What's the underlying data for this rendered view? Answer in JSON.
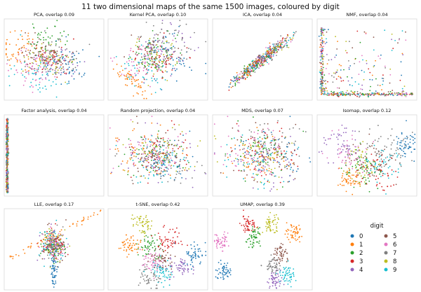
{
  "title": "11 two dimensional maps of the same 1500 images, coloured by digit",
  "colors": {
    "0": "#1f77b4",
    "1": "#ff7f0e",
    "2": "#2ca02c",
    "3": "#d62728",
    "4": "#9467bd",
    "5": "#8c564b",
    "6": "#e377c2",
    "7": "#7f7f7f",
    "8": "#bcbd22",
    "9": "#17becf"
  },
  "legend": {
    "title": "digit",
    "entries": [
      "0",
      "1",
      "2",
      "3",
      "4",
      "5",
      "6",
      "7",
      "8",
      "9"
    ]
  },
  "chart_data": [
    {
      "type": "scatter",
      "title": "PCA, overlap 0.09",
      "method": "PCA",
      "overlap": 0.09,
      "n_points": 1500,
      "series_by": "digit",
      "grid": false
    },
    {
      "type": "scatter",
      "title": "Kernel PCA, overlap 0.10",
      "method": "Kernel PCA",
      "overlap": 0.1,
      "n_points": 1500,
      "series_by": "digit",
      "grid": false
    },
    {
      "type": "scatter",
      "title": "ICA, overlap 0.04",
      "method": "ICA",
      "overlap": 0.04,
      "n_points": 1500,
      "series_by": "digit",
      "grid": false
    },
    {
      "type": "scatter",
      "title": "NMF, overlap 0.04",
      "method": "NMF",
      "overlap": 0.04,
      "n_points": 1500,
      "series_by": "digit",
      "grid": false
    },
    {
      "type": "scatter",
      "title": "Factor analysis, overlap 0.04",
      "method": "Factor analysis",
      "overlap": 0.04,
      "n_points": 1500,
      "series_by": "digit",
      "grid": false
    },
    {
      "type": "scatter",
      "title": "Random projection, overlap 0.04",
      "method": "Random projection",
      "overlap": 0.04,
      "n_points": 1500,
      "series_by": "digit",
      "grid": false
    },
    {
      "type": "scatter",
      "title": "MDS, overlap 0.07",
      "method": "MDS",
      "overlap": 0.07,
      "n_points": 1500,
      "series_by": "digit",
      "grid": false
    },
    {
      "type": "scatter",
      "title": "Isomap, overlap 0.12",
      "method": "Isomap",
      "overlap": 0.12,
      "n_points": 1500,
      "series_by": "digit",
      "grid": false
    },
    {
      "type": "scatter",
      "title": "LLE, overlap 0.17",
      "method": "LLE",
      "overlap": 0.17,
      "n_points": 1500,
      "series_by": "digit",
      "grid": false
    },
    {
      "type": "scatter",
      "title": "t-SNE, overlap 0.42",
      "method": "t-SNE",
      "overlap": 0.42,
      "n_points": 1500,
      "series_by": "digit",
      "grid": false
    },
    {
      "type": "scatter",
      "title": "UMAP, overlap 0.39",
      "method": "UMAP",
      "overlap": 0.39,
      "n_points": 1500,
      "series_by": "digit",
      "grid": false
    }
  ]
}
